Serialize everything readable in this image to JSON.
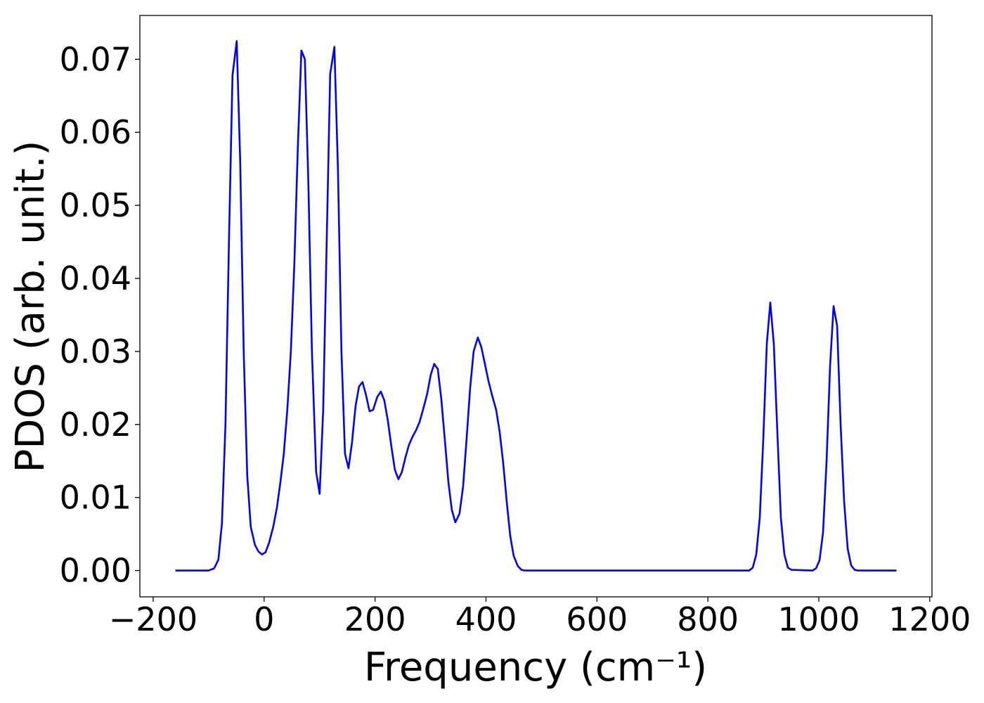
{
  "chart_data": {
    "type": "line",
    "xlabel": "Frequency (cm⁻¹)",
    "ylabel": "PDOS (arb. unit.)",
    "x": [
      -160,
      -100,
      -90,
      -82.4,
      -76,
      -69.7,
      -63.4,
      -57,
      -49.4,
      -43.1,
      -36.8,
      -30.4,
      -24.1,
      -16.5,
      -10.1,
      -3.8,
      2.5,
      8.9,
      16.5,
      22.8,
      29.2,
      35.5,
      41.8,
      48.2,
      54.5,
      60.8,
      67.2,
      73.5,
      79.8,
      86.2,
      93.8,
      100.1,
      106.5,
      112.8,
      119.1,
      126.7,
      133.1,
      139.4,
      145.8,
      152.1,
      158.4,
      164.8,
      171.1,
      177.4,
      183.8,
      190.1,
      196.5,
      204.1,
      210.4,
      216.7,
      223.1,
      229.4,
      235.7,
      242.1,
      248.4,
      254.8,
      261.1,
      267.4,
      273.8,
      280.1,
      286.4,
      294.0,
      300.4,
      306.7,
      313.1,
      319.4,
      325.7,
      332.1,
      338.4,
      344.7,
      352.3,
      358.7,
      365.0,
      371.4,
      377.7,
      385.3,
      391.6,
      398.0,
      404.3,
      410.6,
      418.3,
      424.6,
      430.9,
      437.3,
      443.6,
      449.9,
      457.5,
      463.9,
      470.2,
      874.5,
      880.9,
      887.2,
      893.5,
      899.9,
      906.2,
      912.5,
      918.9,
      925.2,
      931.6,
      937.9,
      944.2,
      950.6,
      988.6,
      994.9,
      1001.3,
      1007.6,
      1014.0,
      1020.3,
      1026.6,
      1033.0,
      1039.3,
      1045.6,
      1052.0,
      1058.3,
      1064.6,
      1071.0,
      1140
    ],
    "series": [
      {
        "color": "#0000ff",
        "values": [
          0,
          0,
          0.0003,
          0.0015,
          0.0065,
          0.02,
          0.045,
          0.0678,
          0.0725,
          0.056,
          0.03,
          0.013,
          0.006,
          0.0035,
          0.0026,
          0.0022,
          0.0025,
          0.0038,
          0.006,
          0.0085,
          0.012,
          0.016,
          0.022,
          0.03,
          0.042,
          0.058,
          0.0712,
          0.07,
          0.053,
          0.03,
          0.0135,
          0.0105,
          0.022,
          0.045,
          0.068,
          0.0717,
          0.055,
          0.03,
          0.016,
          0.014,
          0.0175,
          0.0225,
          0.0252,
          0.0258,
          0.024,
          0.0218,
          0.022,
          0.0238,
          0.0245,
          0.0233,
          0.0205,
          0.017,
          0.0138,
          0.0125,
          0.0135,
          0.0155,
          0.0172,
          0.0183,
          0.0192,
          0.0203,
          0.022,
          0.0242,
          0.0268,
          0.0283,
          0.0276,
          0.0235,
          0.018,
          0.0122,
          0.0083,
          0.0066,
          0.0078,
          0.0115,
          0.018,
          0.025,
          0.03,
          0.0319,
          0.0306,
          0.0283,
          0.026,
          0.0241,
          0.022,
          0.019,
          0.0148,
          0.0095,
          0.0048,
          0.002,
          0.0006,
          0.0001,
          0,
          0,
          0.0004,
          0.0022,
          0.0072,
          0.018,
          0.031,
          0.0367,
          0.031,
          0.019,
          0.0072,
          0.0022,
          0.0004,
          0.0001,
          0,
          0.0003,
          0.0014,
          0.0052,
          0.015,
          0.028,
          0.0362,
          0.0335,
          0.02,
          0.0095,
          0.003,
          0.0007,
          0.0001,
          0,
          0
        ]
      }
    ],
    "xlim": [
      -224,
      1204
    ],
    "ylim": [
      -0.0036,
      0.076
    ],
    "xticks": [
      {
        "value": -200,
        "label": "−200"
      },
      0,
      200,
      400,
      600,
      800,
      1000,
      1200
    ],
    "yticks": [
      {
        "value": 0,
        "label": "0.00"
      },
      0.01,
      0.02,
      0.03,
      0.04,
      0.05,
      0.06,
      0.07
    ],
    "grid": false
  }
}
